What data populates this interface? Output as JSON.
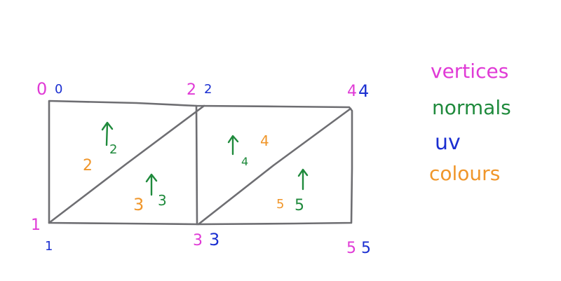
{
  "colors": {
    "vertices": "#e03ad6",
    "normals": "#1f8a3c",
    "uv": "#1b2fd1",
    "colours": "#f0962a",
    "outline": "#6e6e72"
  },
  "legend": {
    "vertices": "vertices",
    "normals": "normals",
    "uv": "uv",
    "colours": "colours"
  },
  "corners": [
    {
      "vertex": "0",
      "uv": "0"
    },
    {
      "vertex": "1",
      "uv": "1"
    },
    {
      "vertex": "2",
      "uv": "2"
    },
    {
      "vertex": "3",
      "uv": "3"
    },
    {
      "vertex": "4",
      "uv": "4"
    },
    {
      "vertex": "5",
      "uv": "5"
    }
  ],
  "triangles": [
    {
      "normal": "2",
      "colour": "2"
    },
    {
      "normal": "3",
      "colour": "3"
    },
    {
      "normal": "4",
      "colour": "4"
    },
    {
      "normal": "5",
      "colour": "5"
    }
  ]
}
